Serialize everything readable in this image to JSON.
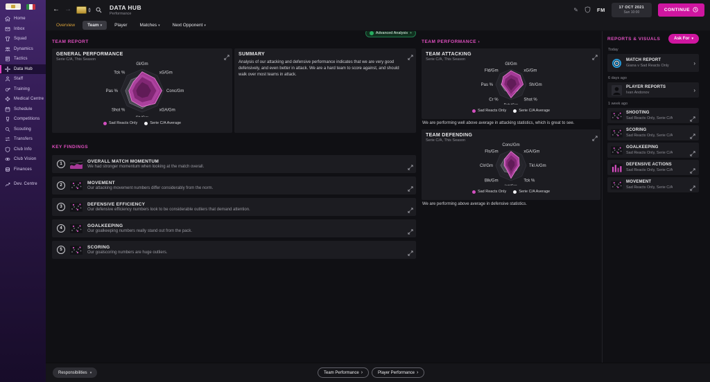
{
  "app": {
    "title": "DATA HUB",
    "subtitle": "Performance",
    "fm_label": "FM",
    "date_line1": "17 OCT 2021",
    "date_line2": "Sun 10:00",
    "continue_label": "CONTINUE"
  },
  "icons": {
    "back_arrow": "←",
    "forward_arrow": "→",
    "pencil": "✎",
    "caret_down": "▾",
    "chevron_right": "›"
  },
  "tabs": [
    {
      "label": "Overview",
      "selected": false,
      "dropdown": false
    },
    {
      "label": "Team",
      "selected": true,
      "dropdown": true
    },
    {
      "label": "Player",
      "selected": false,
      "dropdown": false
    },
    {
      "label": "Matches",
      "selected": false,
      "dropdown": true
    },
    {
      "label": "Next Opponent",
      "selected": false,
      "dropdown": true
    }
  ],
  "sidebar": {
    "items": [
      {
        "label": "Home",
        "icon": "home"
      },
      {
        "label": "Inbox",
        "icon": "inbox"
      },
      {
        "label": "Squad",
        "icon": "squad"
      },
      {
        "label": "Dynamics",
        "icon": "dynamics"
      },
      {
        "label": "Tactics",
        "icon": "tactics"
      },
      {
        "label": "Data Hub",
        "icon": "datahub",
        "selected": true
      },
      {
        "label": "Staff",
        "icon": "staff"
      },
      {
        "label": "Training",
        "icon": "training"
      },
      {
        "label": "Medical Centre",
        "icon": "medical"
      },
      {
        "label": "Schedule",
        "icon": "schedule"
      },
      {
        "label": "Competitions",
        "icon": "competitions"
      },
      {
        "label": "Scouting",
        "icon": "scouting"
      },
      {
        "label": "Transfers",
        "icon": "transfers"
      },
      {
        "label": "Club Info",
        "icon": "clubinfo"
      },
      {
        "label": "Club Vision",
        "icon": "clubvision"
      },
      {
        "label": "Finances",
        "icon": "finances"
      },
      {
        "label": "Dev. Centre",
        "icon": "devcentre",
        "gap": true
      }
    ]
  },
  "team_report": {
    "heading": "TEAM REPORT",
    "advanced_analysis_label": "Advanced Analysis",
    "summary": {
      "title": "SUMMARY",
      "text": "Analysis of our attacking and defensive performance indicates that we are very good defensively, and even better in attack. We are a hard team to score against, and should walk over most teams in attack."
    }
  },
  "key_findings": {
    "heading": "KEY FINDINGS",
    "items": [
      {
        "num": "1",
        "title": "OVERALL MATCH MOMENTUM",
        "desc": "We had stronger momentum when looking at the match overall.",
        "thumb": "momentum"
      },
      {
        "num": "2",
        "title": "MOVEMENT",
        "desc": "Our attacking movement numbers differ considerably from the norm.",
        "thumb": "scatter"
      },
      {
        "num": "3",
        "title": "DEFENSIVE EFFICIENCY",
        "desc": "Our defensive efficiency numbers look to be considerable outliers that demand attention.",
        "thumb": "scatter"
      },
      {
        "num": "4",
        "title": "GOALKEEPING",
        "desc": "Our goalkeeping numbers really stand out from the pack.",
        "thumb": "scatter"
      },
      {
        "num": "5",
        "title": "SCORING",
        "desc": "Our goalscoring numbers are huge outliers.",
        "thumb": "scatter"
      }
    ]
  },
  "team_performance": {
    "heading": "TEAM PERFORMANCE",
    "attacking_caption": "We are performing well above average in attacking statistics, which is great to see.",
    "defending_caption": "We are performing above average in defensive statistics."
  },
  "legend": {
    "team": "Sad Reacts Only",
    "average": "Serie C/A Average"
  },
  "reports": {
    "heading": "REPORTS & VISUALS",
    "ask_for_label": "Ask For",
    "groups": [
      {
        "time": "Today",
        "items": [
          {
            "title": "MATCH REPORT",
            "subtitle": "Giana v Sad Reacts Only",
            "icon": "target",
            "action": "chevron",
            "tall": true
          }
        ]
      },
      {
        "time": "6 days ago",
        "items": [
          {
            "title": "PLAYER REPORTS",
            "subtitle": "Ivan Andonov",
            "icon": "player",
            "action": "chevron",
            "tall": false
          }
        ]
      },
      {
        "time": "1 week ago",
        "items": [
          {
            "title": "SHOOTING",
            "subtitle": "Sad Reacts Only, Serie C/A",
            "icon": "scatter",
            "action": "expand",
            "tall": false
          },
          {
            "title": "SCORING",
            "subtitle": "Sad Reacts Only, Serie C/A",
            "icon": "scatter",
            "action": "expand",
            "tall": false
          },
          {
            "title": "GOALKEEPING",
            "subtitle": "Sad Reacts Only, Serie C/A",
            "icon": "scatter",
            "action": "expand",
            "tall": false
          },
          {
            "title": "DEFENSIVE ACTIONS",
            "subtitle": "Sad Reacts Only, Serie C/A",
            "icon": "bars",
            "action": "expand",
            "tall": false
          },
          {
            "title": "MOVEMENT",
            "subtitle": "Sad Reacts Only, Serie C/A",
            "icon": "scatter",
            "action": "expand",
            "tall": false
          }
        ]
      }
    ]
  },
  "footer": {
    "responsibilities_label": "Responsibilities",
    "team_performance_label": "Team Performance",
    "player_performance_label": "Player Performance"
  },
  "colors": {
    "accent_magenta": "#e04fc0",
    "button_magenta": "#cf16a0",
    "radar_fill": "#c13fae",
    "average_fill": "#8c8c99",
    "green_button": "#27ae60",
    "report_blue": "#2aa0e0"
  },
  "chart_data": [
    {
      "id": "general",
      "type": "radar",
      "title": "GENERAL PERFORMANCE",
      "subtitle": "Serie C/A, This Season",
      "axes": [
        "Gl/Gm",
        "xG/Gm",
        "Conc/Gm",
        "xGA/Gm",
        "Sh/Gm",
        "Shot %",
        "Pas %",
        "Tck %"
      ],
      "range": [
        0,
        1
      ],
      "series": [
        {
          "name": "Sad Reacts Only",
          "values": [
            0.88,
            0.82,
            0.92,
            0.85,
            0.75,
            0.68,
            0.62,
            0.58
          ]
        },
        {
          "name": "Serie C/A Average",
          "values": [
            0.72,
            0.66,
            0.78,
            0.72,
            0.84,
            0.82,
            0.78,
            0.72
          ]
        }
      ]
    },
    {
      "id": "attacking",
      "type": "radar",
      "title": "TEAM ATTACKING",
      "subtitle": "Serie C/A, This Season",
      "axes": [
        "Gl/Gm",
        "xG/Gm",
        "Sh/Gm",
        "Shot %",
        "Drb/Gm",
        "Cr %",
        "Pas %",
        "Fld/Gm"
      ],
      "range": [
        0,
        1
      ],
      "series": [
        {
          "name": "Sad Reacts Only",
          "values": [
            0.9,
            0.85,
            0.8,
            0.58,
            0.88,
            0.5,
            0.62,
            0.72
          ]
        },
        {
          "name": "Serie C/A Average",
          "values": [
            0.65,
            0.6,
            0.68,
            0.62,
            0.55,
            0.58,
            0.66,
            0.6
          ]
        }
      ]
    },
    {
      "id": "defending",
      "type": "radar",
      "title": "TEAM DEFENDING",
      "subtitle": "Serie C/A, This Season",
      "axes": [
        "Conc/Gm",
        "xGA/Gm",
        "Tkl A/Gm",
        "Tck %",
        "Int/Gm",
        "Blk/Gm",
        "Clr/Gm",
        "Fls/Gm"
      ],
      "range": [
        0,
        1
      ],
      "series": [
        {
          "name": "Sad Reacts Only",
          "values": [
            0.92,
            0.72,
            0.55,
            0.45,
            0.85,
            0.4,
            0.45,
            0.6
          ]
        },
        {
          "name": "Serie C/A Average",
          "values": [
            0.55,
            0.55,
            0.52,
            0.5,
            0.5,
            0.6,
            0.68,
            0.62
          ]
        }
      ]
    }
  ]
}
